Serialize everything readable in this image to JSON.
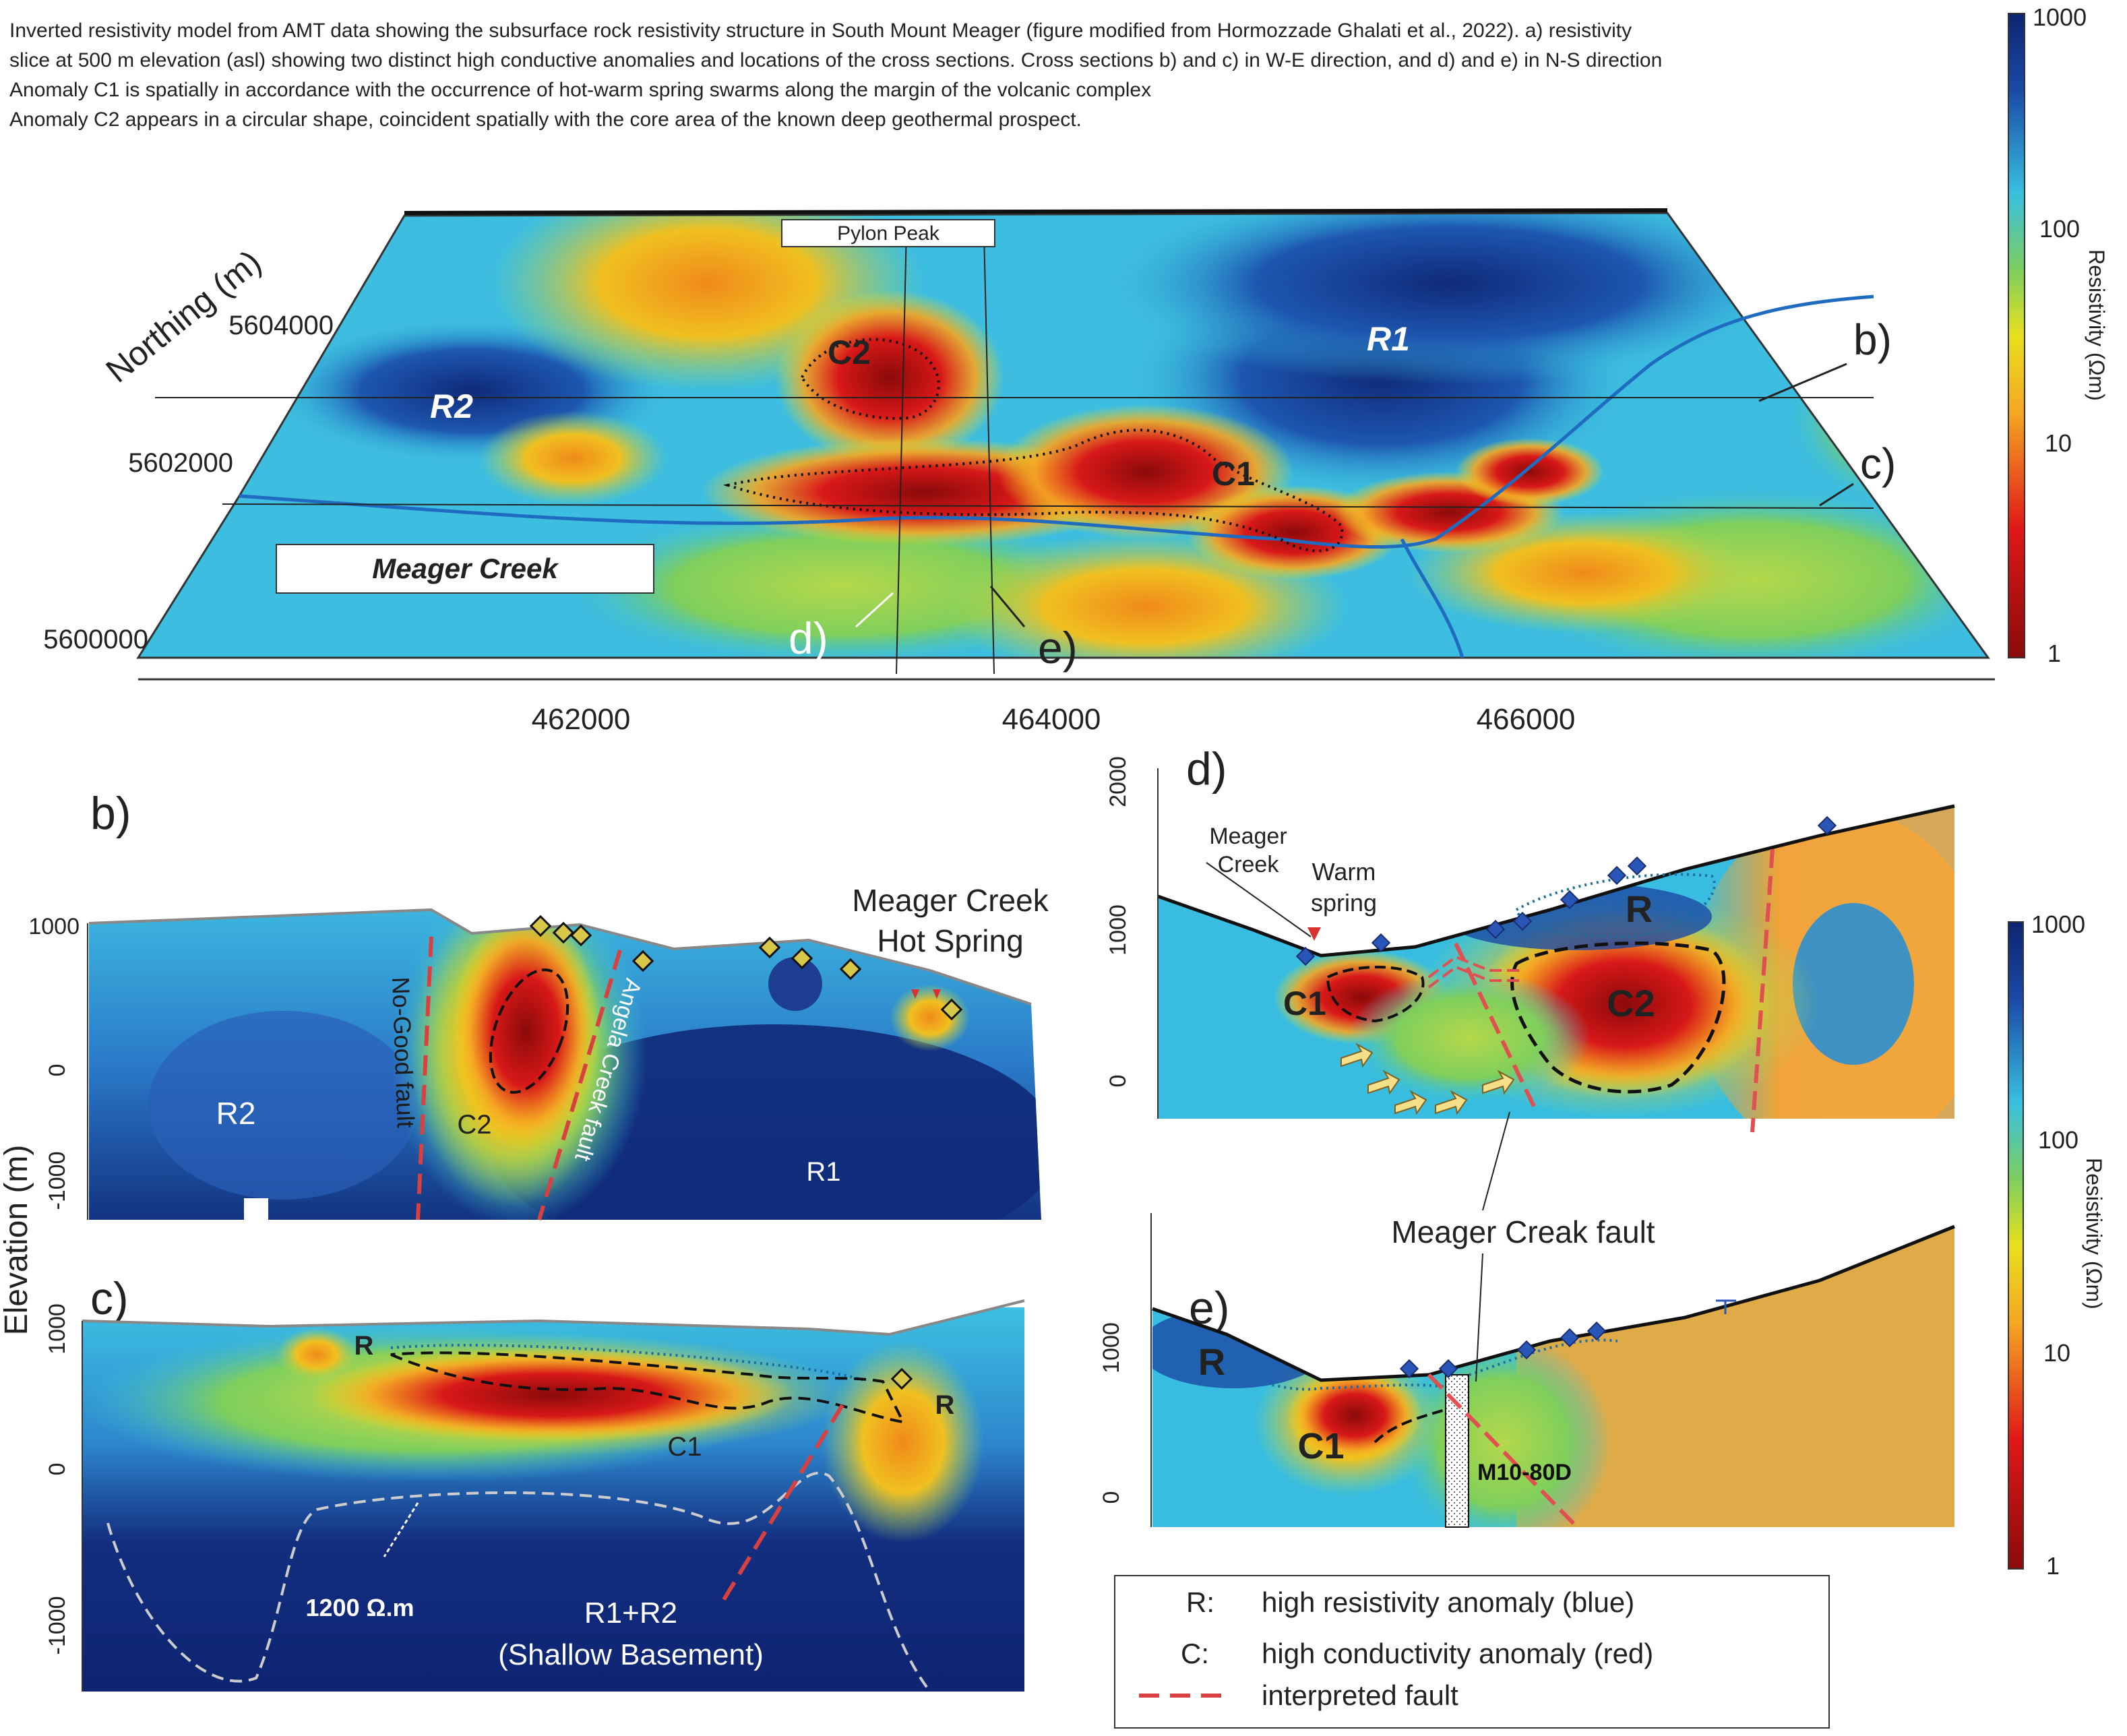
{
  "caption": {
    "line1": "Inverted resistivity model from AMT data showing the subsurface rock resistivity structure in South Mount Meager (figure modified from Hormozzade Ghalati et al., 2022). a) resistivity",
    "line2": "slice at 500 m elevation (asl) showing two distinct high conductive anomalies and locations of the cross sections. Cross sections b) and c) in W-E direction, and d) and e) in N-S direction",
    "line3": "Anomaly C1 is spatially in accordance with the occurrence of hot-warm spring swarms along the margin of the volcanic complex",
    "line4": "Anomaly C2 appears in a circular shape, coincident spatially with the core area of the known deep geothermal prospect."
  },
  "map": {
    "ylabel": "Northing (m)",
    "yticks": [
      "5604000",
      "5602000",
      "5600000"
    ],
    "xticks": [
      "462000",
      "464000",
      "466000"
    ],
    "pylon_peak": "Pylon Peak",
    "meager_creek": "Meager Creek",
    "anomalies": {
      "c1": "C1",
      "c2": "C2",
      "r1": "R1",
      "r2": "R2"
    },
    "section_labels": {
      "b": "b)",
      "c": "c)",
      "d": "d)",
      "e": "e)"
    }
  },
  "colorbar": {
    "ticks": [
      "1000",
      "100",
      "10",
      "1"
    ],
    "label": "Resistivity (Ωm)",
    "colors": [
      "#8b0a0a",
      "#e01818",
      "#f5a623",
      "#e8e01e",
      "#7fcf5c",
      "#38c0e0",
      "#1a4aa6",
      "#0d2470"
    ]
  },
  "section_b": {
    "panel": "b)",
    "yticks": [
      "1000",
      "0",
      "-1000"
    ],
    "hot_spring": [
      "Meager Creek",
      "Hot Spring"
    ],
    "no_good_fault": "No-Good fault",
    "angela_fault": "Angela Creek fault",
    "c2": "C2",
    "r1": "R1",
    "r2": "R2"
  },
  "section_c": {
    "panel": "c)",
    "yticks": [
      "1000",
      "0",
      "-1000"
    ],
    "r_left": "R",
    "r_right": "R",
    "c1": "C1",
    "contour": "1200 Ω.m",
    "basement": [
      "R1+R2",
      "(Shallow Basement)"
    ]
  },
  "elevation_label": "Elevation (m)",
  "section_d": {
    "panel": "d)",
    "yticks": [
      "2000",
      "1000",
      "0"
    ],
    "meager_creek": [
      "Meager",
      "Creek"
    ],
    "warm_spring": [
      "Warm",
      "spring"
    ],
    "c1": "C1",
    "c2": "C2",
    "r": "R"
  },
  "fault_callout": "Meager Creak fault",
  "section_e": {
    "panel": "e)",
    "yticks": [
      "1000",
      "0"
    ],
    "r": "R",
    "c1": "C1",
    "well": "M10-80D"
  },
  "legend": {
    "r_key": "R:",
    "r_text": "high resistivity anomaly (blue)",
    "c_key": "C:",
    "c_text": "high conductivity anomaly (red)",
    "fault_text": "interpreted fault"
  }
}
